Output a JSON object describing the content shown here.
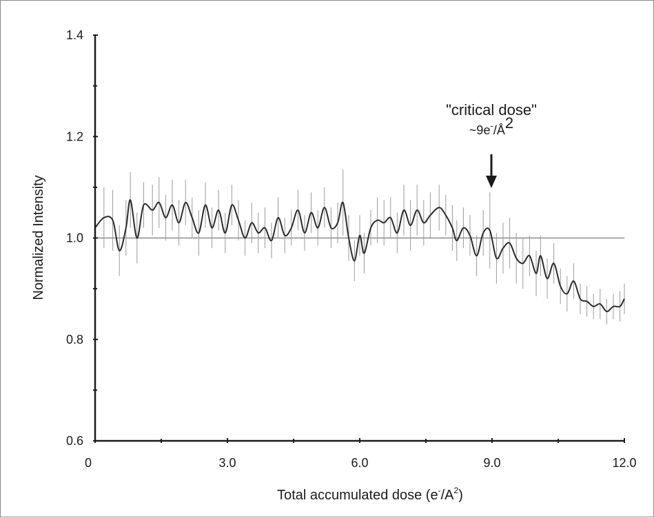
{
  "chart_data": {
    "type": "line",
    "title": "",
    "xlabel": {
      "main": "Total accumulated dose (e",
      "sup1": "-",
      "mid": "/A",
      "sup2": "2",
      "end": ")"
    },
    "ylabel": "Normalized Intensity",
    "xlim": [
      0,
      12
    ],
    "ylim": [
      0.6,
      1.4
    ],
    "x_ticks": [
      {
        "value": 0,
        "label": "0"
      },
      {
        "value": 3,
        "label": "3.0"
      },
      {
        "value": 6,
        "label": "6.0"
      },
      {
        "value": 9,
        "label": "9.0"
      },
      {
        "value": 12,
        "label": "12.0"
      }
    ],
    "x_minor_ticks": [
      1.5,
      4.5,
      7.5,
      10.5
    ],
    "y_ticks": [
      {
        "value": 0.6,
        "label": "0.6"
      },
      {
        "value": 0.8,
        "label": "0.8"
      },
      {
        "value": 1.0,
        "label": "1.0"
      },
      {
        "value": 1.2,
        "label": "1.2"
      },
      {
        "value": 1.4,
        "label": "1.4"
      }
    ],
    "y_minor_ticks": [
      0.7,
      0.9,
      1.1,
      1.3
    ],
    "reference_line": {
      "y": 1.0,
      "color": "#8c8c8c"
    },
    "annotation": {
      "line1": "\"critical dose\"",
      "line2_main": "~9e",
      "line2_sup1": "-",
      "line2_mid": "/Å",
      "line2_sup2": "2",
      "x": 9.0
    },
    "series": [
      {
        "color": "#2b2b2b",
        "x": [
          0.0,
          0.2,
          0.4,
          0.55,
          0.7,
          0.8,
          0.95,
          1.1,
          1.3,
          1.45,
          1.6,
          1.75,
          1.9,
          2.05,
          2.2,
          2.35,
          2.5,
          2.65,
          2.8,
          2.95,
          3.1,
          3.25,
          3.4,
          3.55,
          3.7,
          3.85,
          4.0,
          4.15,
          4.3,
          4.45,
          4.6,
          4.75,
          4.9,
          5.05,
          5.2,
          5.35,
          5.5,
          5.62,
          5.75,
          5.88,
          6.0,
          6.1,
          6.25,
          6.4,
          6.55,
          6.7,
          6.85,
          7.0,
          7.15,
          7.3,
          7.45,
          7.6,
          7.8,
          7.95,
          8.1,
          8.2,
          8.35,
          8.5,
          8.65,
          8.8,
          8.95,
          9.1,
          9.25,
          9.4,
          9.55,
          9.7,
          9.85,
          10.0,
          10.1,
          10.25,
          10.4,
          10.55,
          10.7,
          10.85,
          11.0,
          11.15,
          11.3,
          11.45,
          11.6,
          11.75,
          11.9,
          12.0
        ],
        "y": [
          1.02,
          1.04,
          1.035,
          0.975,
          1.02,
          1.075,
          1.0,
          1.065,
          1.055,
          1.07,
          1.04,
          1.065,
          1.03,
          1.07,
          1.04,
          1.01,
          1.065,
          1.02,
          1.055,
          1.01,
          1.065,
          1.035,
          1.0,
          1.03,
          1.01,
          1.02,
          0.995,
          1.04,
          1.005,
          1.02,
          1.055,
          1.01,
          1.05,
          1.02,
          1.06,
          1.02,
          1.03,
          1.07,
          1.0,
          0.955,
          1.005,
          0.97,
          1.02,
          1.035,
          1.03,
          1.04,
          1.01,
          1.055,
          1.025,
          1.055,
          1.03,
          1.045,
          1.06,
          1.045,
          1.02,
          0.995,
          1.02,
          1.005,
          0.965,
          1.01,
          1.015,
          0.96,
          0.98,
          0.99,
          0.96,
          0.95,
          0.965,
          0.93,
          0.965,
          0.92,
          0.95,
          0.905,
          0.89,
          0.915,
          0.88,
          0.875,
          0.865,
          0.87,
          0.855,
          0.865,
          0.865,
          0.88
        ],
        "error": [
          0.06,
          0.06,
          0.06,
          0.05,
          0.055,
          0.055,
          0.05,
          0.045,
          0.05,
          0.05,
          0.045,
          0.05,
          0.045,
          0.045,
          0.04,
          0.045,
          0.045,
          0.04,
          0.04,
          0.04,
          0.04,
          0.04,
          0.035,
          0.04,
          0.04,
          0.04,
          0.035,
          0.04,
          0.035,
          0.035,
          0.04,
          0.035,
          0.04,
          0.035,
          0.04,
          0.04,
          0.04,
          0.065,
          0.045,
          0.04,
          0.04,
          0.04,
          0.035,
          0.045,
          0.045,
          0.04,
          0.04,
          0.05,
          0.05,
          0.05,
          0.045,
          0.045,
          0.045,
          0.04,
          0.045,
          0.04,
          0.04,
          0.04,
          0.04,
          0.045,
          0.075,
          0.05,
          0.05,
          0.05,
          0.05,
          0.05,
          0.04,
          0.045,
          0.04,
          0.04,
          0.04,
          0.035,
          0.035,
          0.035,
          0.03,
          0.03,
          0.025,
          0.03,
          0.025,
          0.025,
          0.03,
          0.03
        ]
      }
    ]
  }
}
